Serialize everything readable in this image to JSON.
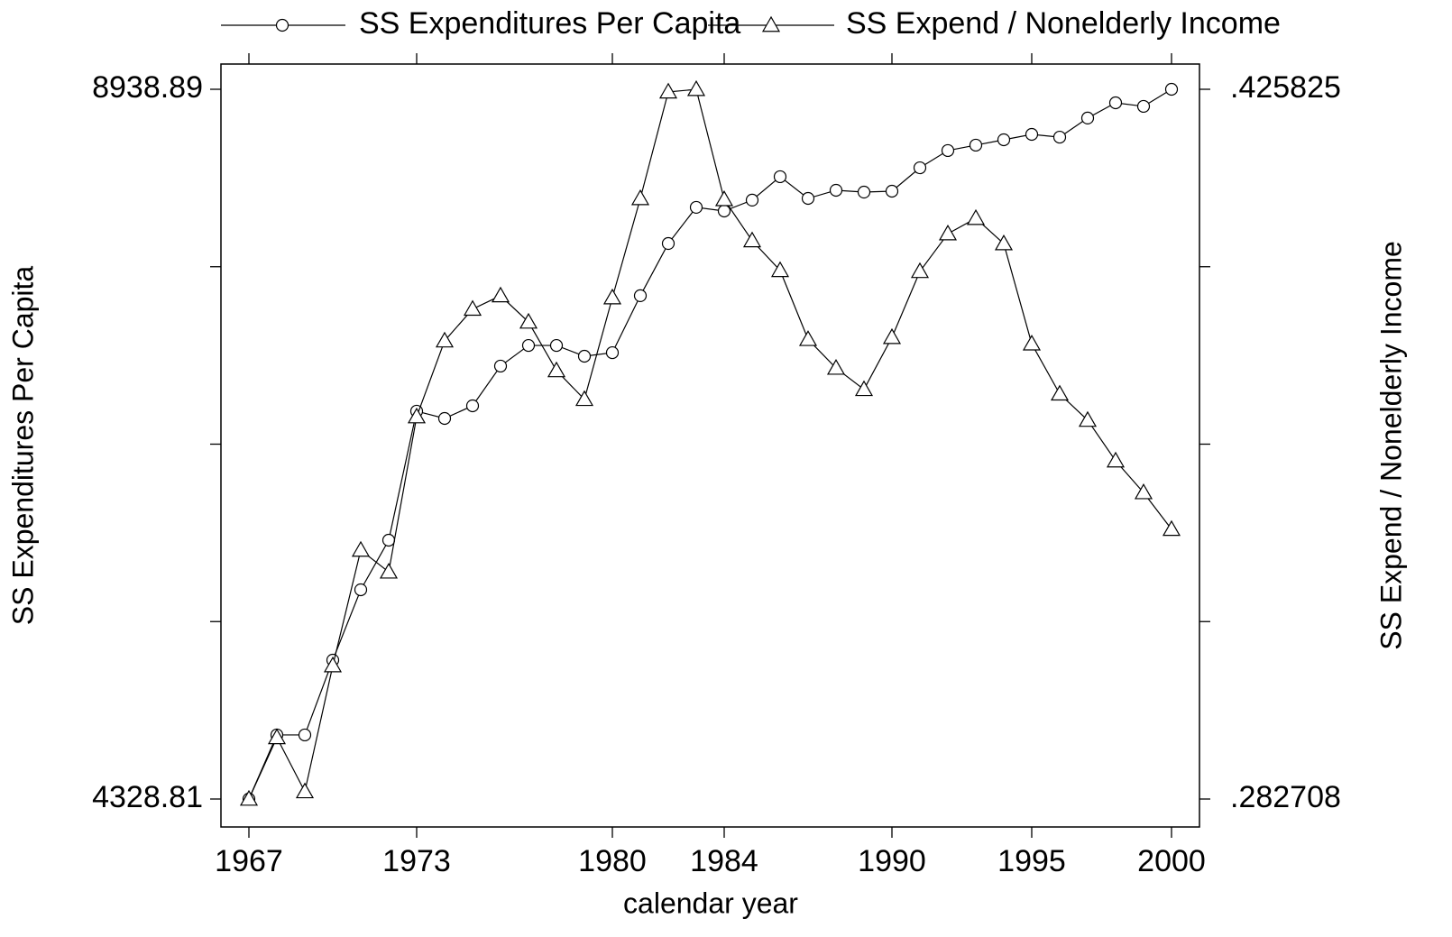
{
  "chart_data": {
    "type": "line",
    "xlabel": "calendar year",
    "ylabel": "SS Expenditures Per Capita",
    "y2label": "SS Expend / Nonelderly Income",
    "x": [
      1967,
      1968,
      1969,
      1970,
      1971,
      1972,
      1973,
      1974,
      1975,
      1976,
      1977,
      1978,
      1979,
      1980,
      1981,
      1982,
      1983,
      1984,
      1985,
      1986,
      1987,
      1988,
      1989,
      1990,
      1991,
      1992,
      1993,
      1994,
      1995,
      1996,
      1997,
      1998,
      1999,
      2000
    ],
    "xlim": [
      1966,
      2001
    ],
    "xticks": [
      1967,
      1973,
      1980,
      1984,
      1990,
      1995,
      2000
    ],
    "ylim": [
      4147.2,
      9102.9
    ],
    "yticks": [
      4328.81,
      8938.89
    ],
    "yminorticks": [
      5481.33,
      6633.85,
      7786.37
    ],
    "y2lim": [
      0.277071,
      0.430917
    ],
    "y2ticks": [
      {
        "value": 0.282708,
        "label": ".282708"
      },
      {
        "value": 0.425825,
        "label": ".425825"
      }
    ],
    "y2minorticks": [
      0.318487,
      0.354267,
      0.390046
    ],
    "legend": "top",
    "series": [
      {
        "name": "SS Expenditures Per Capita",
        "color": "#000000",
        "marker": "circle",
        "values": [
          4328.81,
          4745,
          4745,
          5231,
          5688,
          6010,
          6848,
          6801,
          6883,
          7141,
          7275,
          7275,
          7205,
          7228,
          7598,
          7937,
          8172,
          8148,
          8219,
          8371,
          8230,
          8283,
          8271,
          8277,
          8429,
          8541,
          8576,
          8611,
          8646,
          8628,
          8752,
          8851,
          8828,
          8938.89
        ]
      },
      {
        "name": "SS Expend / Nonelderly Income",
        "color": "#000000",
        "marker": "triangle",
        "axis": "y2",
        "values": [
          0.2827,
          0.2951,
          0.2842,
          0.3096,
          0.3329,
          0.3285,
          0.3598,
          0.3751,
          0.3815,
          0.3842,
          0.3789,
          0.3691,
          0.3633,
          0.3838,
          0.4038,
          0.4253,
          0.4258,
          0.4036,
          0.3953,
          0.3893,
          0.3754,
          0.3696,
          0.3653,
          0.3758,
          0.3891,
          0.3967,
          0.3998,
          0.3947,
          0.3745,
          0.3644,
          0.3591,
          0.3509,
          0.3445,
          0.3371
        ]
      }
    ]
  }
}
